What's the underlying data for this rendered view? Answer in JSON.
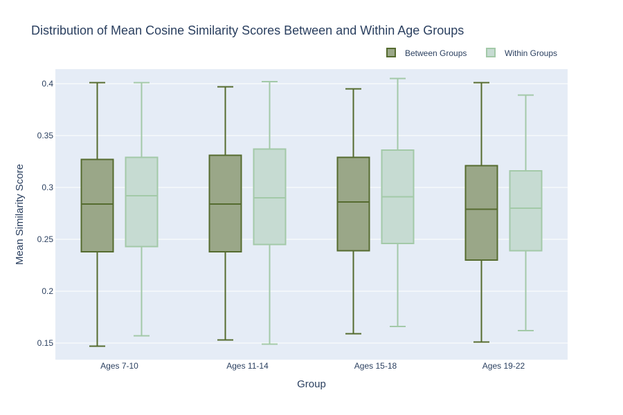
{
  "chart_data": {
    "type": "box",
    "title": "Distribution of Mean Cosine Similarity Scores Between and Within Age Groups",
    "xlabel": "Group",
    "ylabel": "Mean Similarity Score",
    "categories": [
      "Ages 7-10",
      "Ages 11-14",
      "Ages 15-18",
      "Ages 19-22"
    ],
    "ylim": [
      0.134,
      0.414
    ],
    "yticks": [
      0.15,
      0.2,
      0.25,
      0.3,
      0.35,
      0.4
    ],
    "ytick_labels": [
      "0.15",
      "0.2",
      "0.25",
      "0.3",
      "0.35",
      "0.4"
    ],
    "grid": true,
    "legend_position": "top-right",
    "series": [
      {
        "name": "Between Groups",
        "line_color": "#556b2f",
        "fill_color": "#9aa788",
        "boxes": [
          {
            "min": 0.147,
            "q1": 0.238,
            "median": 0.284,
            "q3": 0.327,
            "max": 0.401
          },
          {
            "min": 0.153,
            "q1": 0.238,
            "median": 0.284,
            "q3": 0.331,
            "max": 0.397
          },
          {
            "min": 0.159,
            "q1": 0.239,
            "median": 0.286,
            "q3": 0.329,
            "max": 0.395
          },
          {
            "min": 0.151,
            "q1": 0.23,
            "median": 0.279,
            "q3": 0.321,
            "max": 0.401
          }
        ]
      },
      {
        "name": "Within Groups",
        "line_color": "#a3c9a8",
        "fill_color": "#c6dbd2",
        "boxes": [
          {
            "min": 0.157,
            "q1": 0.243,
            "median": 0.292,
            "q3": 0.329,
            "max": 0.401
          },
          {
            "min": 0.149,
            "q1": 0.245,
            "median": 0.29,
            "q3": 0.337,
            "max": 0.402
          },
          {
            "min": 0.166,
            "q1": 0.246,
            "median": 0.291,
            "q3": 0.336,
            "max": 0.405
          },
          {
            "min": 0.162,
            "q1": 0.239,
            "median": 0.28,
            "q3": 0.316,
            "max": 0.389
          }
        ]
      }
    ]
  }
}
